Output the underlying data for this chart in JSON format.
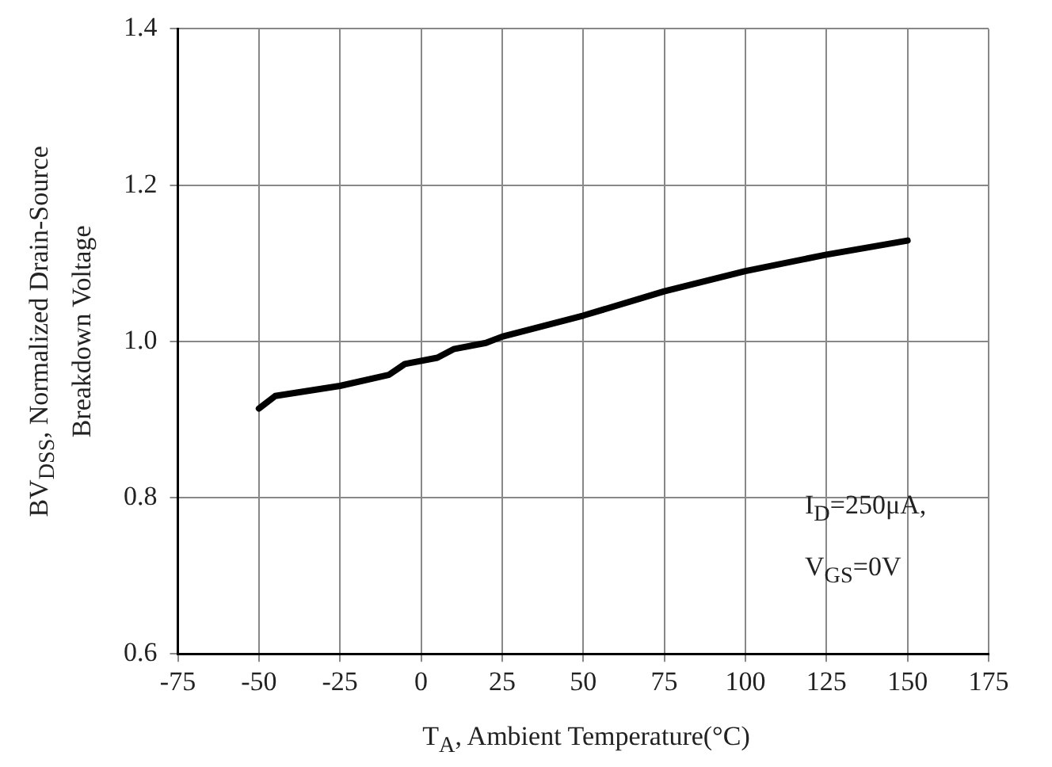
{
  "chart_data": {
    "type": "line",
    "xlabel": "T$_{A}$, Ambient Temperature(°C)",
    "ylabel": "BV$_{DSS}$, Normalized Drain-Source Breakdown Voltage",
    "x": [
      -50,
      -45,
      -25,
      -10,
      -5,
      5,
      10,
      20,
      25,
      50,
      75,
      100,
      125,
      150
    ],
    "series": [
      {
        "color": "#000000",
        "values": [
          0.914,
          0.93,
          0.943,
          0.957,
          0.971,
          0.979,
          0.99,
          0.998,
          1.006,
          1.033,
          1.064,
          1.09,
          1.111,
          1.129
        ]
      }
    ],
    "xlim": [
      -75,
      175
    ],
    "xticks": [
      -75,
      -50,
      -25,
      0,
      25,
      50,
      75,
      100,
      125,
      150,
      175
    ],
    "ylim": [
      0.6,
      1.4
    ],
    "yticks": [
      0.6,
      0.8,
      {
        "value": 1,
        "label": "1.0"
      },
      1.2,
      1.4
    ],
    "grid": true,
    "legend": false,
    "marker": "none",
    "line_style": "solid",
    "annotations": [
      "I$_{D}$=250μA,",
      "V$_{GS}$=0V"
    ]
  }
}
